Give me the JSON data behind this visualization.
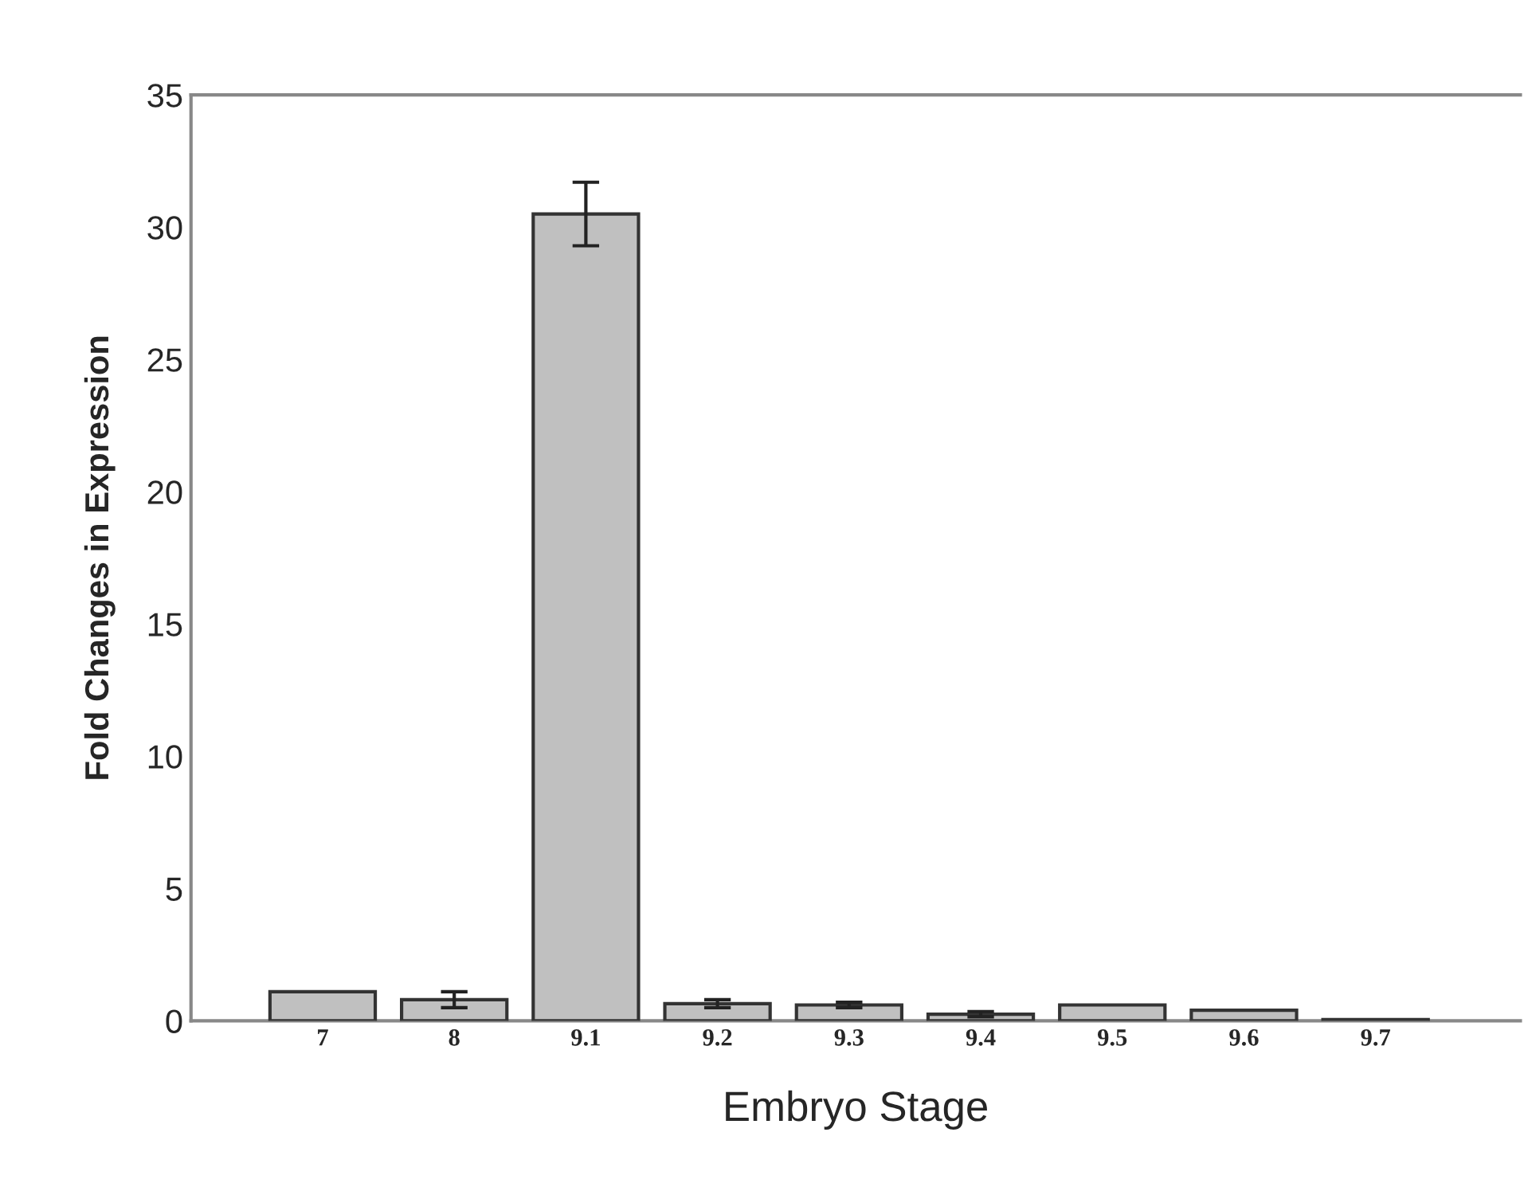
{
  "chart_data": {
    "type": "bar",
    "xlabel": "Embryo Stage",
    "ylabel": "Fold Changes in Expression",
    "categories": [
      "7",
      "8",
      "9.1",
      "9.2",
      "9.3",
      "9.4",
      "9.5",
      "9.6",
      "9.7"
    ],
    "values": [
      1.1,
      0.8,
      30.5,
      0.65,
      0.6,
      0.25,
      0.6,
      0.4,
      0.05
    ],
    "errors": [
      null,
      0.3,
      1.2,
      0.15,
      0.1,
      0.1,
      null,
      null,
      null
    ],
    "color": "#c0c0c0",
    "ylim": [
      0,
      35
    ],
    "yticks": [
      0,
      5,
      10,
      15,
      20,
      25,
      30,
      35
    ],
    "grid": false
  }
}
